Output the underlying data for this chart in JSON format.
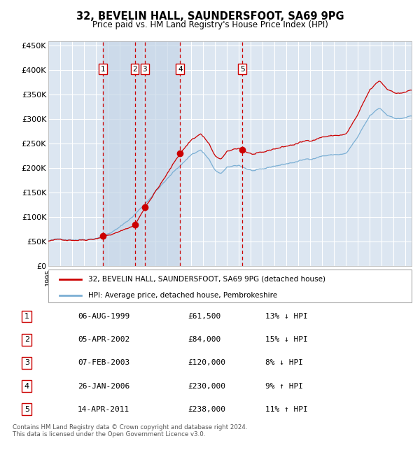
{
  "title": "32, BEVELIN HALL, SAUNDERSFOOT, SA69 9PG",
  "subtitle": "Price paid vs. HM Land Registry's House Price Index (HPI)",
  "legend_line1": "32, BEVELIN HALL, SAUNDERSFOOT, SA69 9PG (detached house)",
  "legend_line2": "HPI: Average price, detached house, Pembrokeshire",
  "footer": "Contains HM Land Registry data © Crown copyright and database right 2024.\nThis data is licensed under the Open Government Licence v3.0.",
  "transactions": [
    {
      "num": 1,
      "date": "06-AUG-1999",
      "price": 61500,
      "year": 1999.59,
      "pct": "13%",
      "dir": "↓"
    },
    {
      "num": 2,
      "date": "05-APR-2002",
      "price": 84000,
      "year": 2002.26,
      "pct": "15%",
      "dir": "↓"
    },
    {
      "num": 3,
      "date": "07-FEB-2003",
      "price": 120000,
      "year": 2003.1,
      "pct": "8%",
      "dir": "↓"
    },
    {
      "num": 4,
      "date": "26-JAN-2006",
      "price": 230000,
      "year": 2006.07,
      "pct": "9%",
      "dir": "↑"
    },
    {
      "num": 5,
      "date": "14-APR-2011",
      "price": 238000,
      "year": 2011.28,
      "pct": "11%",
      "dir": "↑"
    }
  ],
  "ylim": [
    0,
    460000
  ],
  "xlim_start": 1995.0,
  "xlim_end": 2025.5,
  "bg_color": "#dce6f1",
  "grid_color": "#ffffff",
  "hpi_color": "#7bafd4",
  "price_color": "#cc0000",
  "vline_color": "#cc0000",
  "marker_color": "#cc0000",
  "shade_color": "#c6d6e8"
}
